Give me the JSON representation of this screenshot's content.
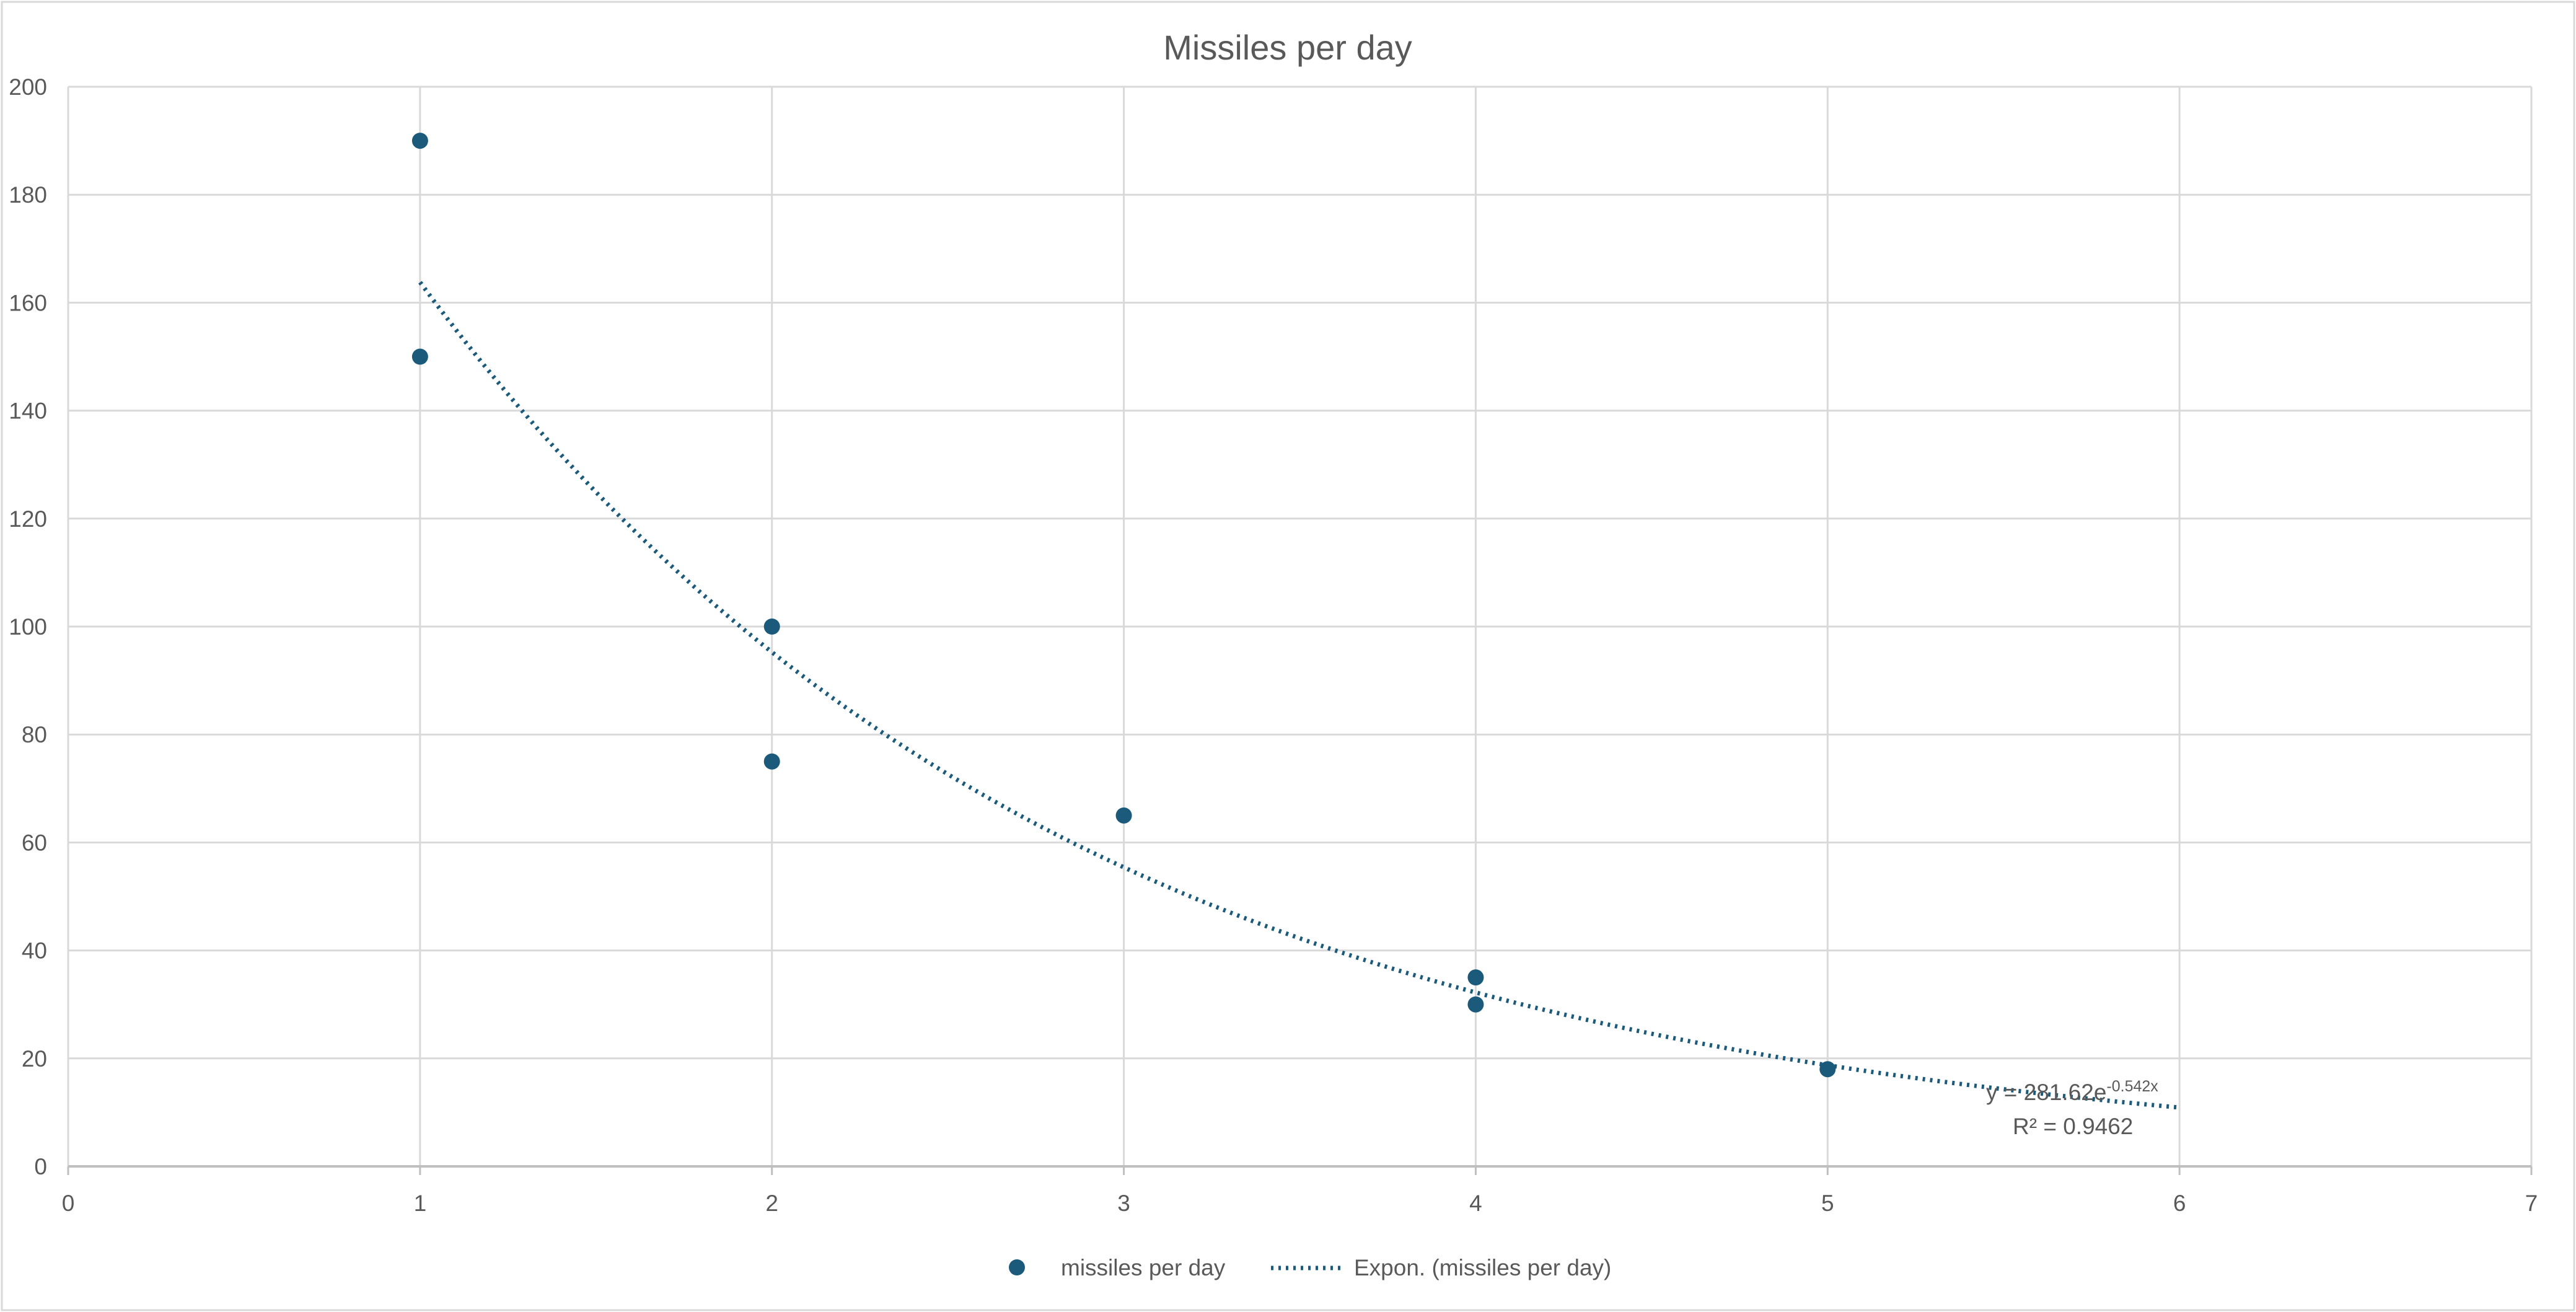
{
  "chart_data": {
    "type": "scatter",
    "title": "Missiles per day",
    "xlabel": "",
    "ylabel": "",
    "xlim": [
      0,
      7
    ],
    "ylim": [
      0,
      200
    ],
    "x_ticks": [
      0,
      1,
      2,
      3,
      4,
      5,
      6,
      7
    ],
    "y_ticks": [
      0,
      20,
      40,
      60,
      80,
      100,
      120,
      140,
      160,
      180,
      200
    ],
    "grid": true,
    "legend_position": "bottom",
    "series": [
      {
        "name": "missiles per day",
        "color": "#1b5a7a",
        "points": [
          {
            "x": 1,
            "y": 190
          },
          {
            "x": 1,
            "y": 150
          },
          {
            "x": 2,
            "y": 100
          },
          {
            "x": 2,
            "y": 75
          },
          {
            "x": 3,
            "y": 65
          },
          {
            "x": 4,
            "y": 35
          },
          {
            "x": 4,
            "y": 30
          },
          {
            "x": 5,
            "y": 18
          }
        ]
      }
    ],
    "trendline": {
      "name": "Expon. (missiles per day)",
      "type": "exponential",
      "color": "#1b5a7a",
      "style": "dotted",
      "a": 281.62,
      "b": -0.542,
      "x_range": [
        1,
        6
      ],
      "equation_prefix": "y = 281.62e",
      "equation_exponent": "-0.542x",
      "r2_label": "R² = 0.9462"
    }
  }
}
